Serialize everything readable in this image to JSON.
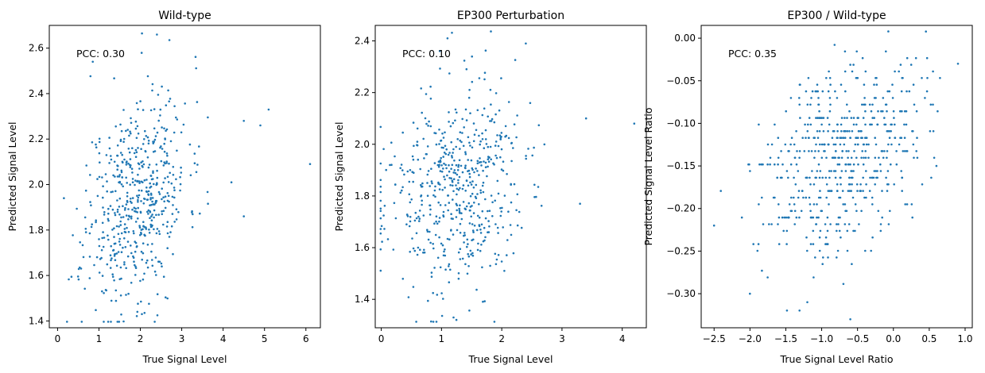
{
  "chart_data": [
    {
      "type": "scatter",
      "title": "Wild-type",
      "xlabel": "True Signal Level",
      "ylabel": "Predicted Signal Level",
      "annotation": "PCC: 0.30",
      "xlim": [
        -0.2,
        6.35
      ],
      "ylim": [
        1.37,
        2.7
      ],
      "xticks": [
        0,
        1,
        2,
        3,
        4,
        5,
        6
      ],
      "yticks": [
        1.4,
        1.6,
        1.8,
        2.0,
        2.2,
        2.4,
        2.6
      ],
      "grid": false,
      "color": "#1f77b4",
      "center": [
        1.9,
        1.94
      ],
      "spread": [
        0.62,
        0.24
      ],
      "pcc": 0.3,
      "n_points": 560,
      "seed": 11,
      "outliers": [
        [
          6.1,
          2.09
        ],
        [
          5.1,
          2.33
        ],
        [
          4.9,
          2.26
        ],
        [
          4.5,
          2.28
        ],
        [
          4.5,
          1.86
        ],
        [
          4.2,
          2.01
        ],
        [
          2.4,
          2.66
        ],
        [
          0.85,
          2.54
        ]
      ]
    },
    {
      "type": "scatter",
      "title": "EP300 Perturbation",
      "xlabel": "True Signal Level",
      "ylabel": "Predicted Signal Level",
      "annotation": "PCC: 0.10",
      "xlim": [
        -0.1,
        4.4
      ],
      "ylim": [
        1.29,
        2.46
      ],
      "xticks": [
        0,
        1,
        2,
        3,
        4
      ],
      "yticks": [
        1.4,
        1.6,
        1.8,
        2.0,
        2.2,
        2.4
      ],
      "grid": false,
      "color": "#1f77b4",
      "center": [
        1.2,
        1.82
      ],
      "spread": [
        0.58,
        0.2
      ],
      "pcc": 0.1,
      "n_points": 560,
      "seed": 23,
      "outliers": [
        [
          4.2,
          2.08
        ],
        [
          3.4,
          2.1
        ],
        [
          3.3,
          1.77
        ],
        [
          2.4,
          2.39
        ],
        [
          1.1,
          2.41
        ],
        [
          1.2,
          1.33
        ]
      ]
    },
    {
      "type": "scatter",
      "title": "EP300 / Wild-type",
      "xlabel": "True Signal Level Ratio",
      "ylabel": "Predicted Signal Level Ratio",
      "annotation": "PCC: 0.35",
      "xlim": [
        -2.68,
        1.1
      ],
      "ylim": [
        -0.34,
        0.015
      ],
      "xticks": [
        -2.5,
        -2.0,
        -1.5,
        -1.0,
        -0.5,
        0.0,
        0.5,
        1.0
      ],
      "xtick_labels": [
        "−2.5",
        "−2.0",
        "−1.5",
        "−1.0",
        "−0.5",
        "0.0",
        "0.5",
        "1.0"
      ],
      "yticks": [
        0.0,
        -0.05,
        -0.1,
        -0.15,
        -0.2,
        -0.25,
        -0.3
      ],
      "ytick_labels": [
        "0.00",
        "−0.05",
        "−0.10",
        "−0.15",
        "−0.20",
        "−0.25",
        "−0.30"
      ],
      "grid": false,
      "color": "#1f77b4",
      "center": [
        -0.7,
        -0.135
      ],
      "spread": [
        0.55,
        0.058
      ],
      "pcc": 0.35,
      "y_step": 0.0078,
      "n_points": 560,
      "seed": 37,
      "outliers": [
        [
          -2.5,
          -0.22
        ],
        [
          -2.0,
          -0.3
        ],
        [
          0.9,
          -0.03
        ],
        [
          0.6,
          -0.15
        ],
        [
          -0.6,
          -0.33
        ],
        [
          -1.2,
          -0.31
        ]
      ]
    }
  ]
}
